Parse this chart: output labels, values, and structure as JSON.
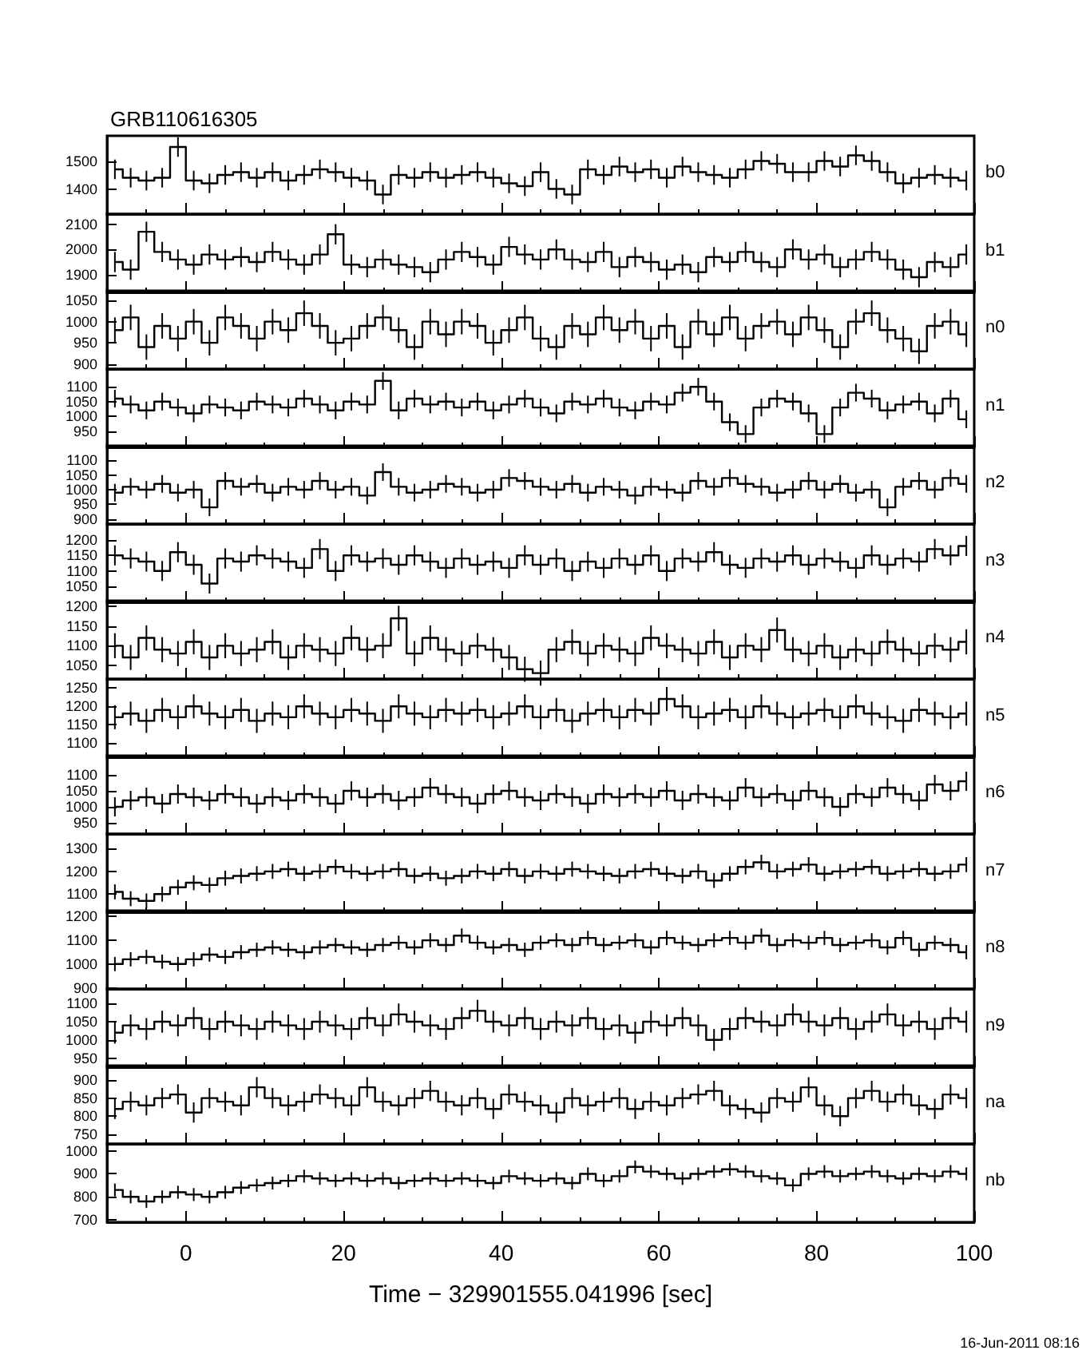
{
  "chart_data": [
    {
      "type": "step",
      "title": "GRB110616305",
      "annotations": [
        "b0"
      ],
      "x": [
        -9,
        -7,
        -5,
        -3,
        -1,
        1,
        3,
        5,
        7,
        9,
        11,
        13,
        15,
        17,
        19,
        21,
        23,
        25,
        27,
        29,
        31,
        33,
        35,
        37,
        39,
        41,
        43,
        45,
        47,
        49,
        51,
        53,
        55,
        57,
        59,
        61,
        63,
        65,
        67,
        69,
        71,
        73,
        75,
        77,
        79,
        81,
        83,
        85,
        87,
        89,
        91,
        93,
        95,
        97,
        99
      ],
      "xlim": [
        -10,
        100
      ],
      "xticks": [
        0,
        20,
        40,
        60,
        80,
        100
      ],
      "ylim": [
        1310,
        1590
      ],
      "yticks": [
        1400,
        1500
      ],
      "tick_labels": "y",
      "grid": false,
      "marker": "none",
      "line_style": "solid",
      "color": "#000000",
      "values": [
        1470,
        1440,
        1430,
        1440,
        1550,
        1430,
        1420,
        1450,
        1460,
        1440,
        1460,
        1430,
        1450,
        1470,
        1460,
        1440,
        1430,
        1380,
        1450,
        1440,
        1460,
        1440,
        1450,
        1460,
        1440,
        1420,
        1410,
        1460,
        1400,
        1380,
        1470,
        1450,
        1480,
        1460,
        1470,
        1440,
        1480,
        1460,
        1450,
        1440,
        1470,
        1500,
        1490,
        1460,
        1460,
        1500,
        1480,
        1520,
        1500,
        1460,
        1420,
        1440,
        1450,
        1440,
        1430
      ],
      "errors": [
        35,
        35,
        35,
        35,
        35,
        35,
        35,
        35,
        35,
        35,
        35,
        35,
        35,
        35,
        35,
        35,
        35,
        35,
        35,
        35,
        35,
        35,
        35,
        35,
        35,
        35,
        35,
        35,
        35,
        35,
        35,
        35,
        35,
        35,
        35,
        35,
        35,
        35,
        35,
        35,
        35,
        35,
        35,
        35,
        35,
        35,
        35,
        35,
        35,
        35,
        35,
        35,
        35,
        35,
        35
      ]
    },
    {
      "type": "step",
      "annotations": [
        "b1"
      ],
      "x": [
        -9,
        -7,
        -5,
        -3,
        -1,
        1,
        3,
        5,
        7,
        9,
        11,
        13,
        15,
        17,
        19,
        21,
        23,
        25,
        27,
        29,
        31,
        33,
        35,
        37,
        39,
        41,
        43,
        45,
        47,
        49,
        51,
        53,
        55,
        57,
        59,
        61,
        63,
        65,
        67,
        69,
        71,
        73,
        75,
        77,
        79,
        81,
        83,
        85,
        87,
        89,
        91,
        93,
        95,
        97,
        99
      ],
      "xlim": [
        -10,
        100
      ],
      "xticks": [
        0,
        20,
        40,
        60,
        80,
        100
      ],
      "ylim": [
        1830,
        2140
      ],
      "yticks": [
        1900,
        2000,
        2100
      ],
      "tick_labels": "y",
      "grid": false,
      "marker": "none",
      "line_style": "solid",
      "color": "#000000",
      "values": [
        1950,
        1920,
        2070,
        1990,
        1960,
        1940,
        1980,
        1960,
        1970,
        1950,
        1990,
        1960,
        1940,
        1980,
        2060,
        1940,
        1930,
        1960,
        1940,
        1930,
        1910,
        1960,
        1990,
        1970,
        1940,
        2010,
        1980,
        1960,
        2000,
        1960,
        1950,
        1990,
        1930,
        1970,
        1950,
        1920,
        1940,
        1910,
        1970,
        1950,
        1990,
        1950,
        1930,
        2000,
        1960,
        1980,
        1930,
        1960,
        1990,
        1960,
        1920,
        1890,
        1950,
        1930,
        1980
      ],
      "errors": [
        40,
        40,
        40,
        40,
        40,
        40,
        40,
        40,
        40,
        40,
        40,
        40,
        40,
        40,
        40,
        40,
        40,
        40,
        40,
        40,
        40,
        40,
        40,
        40,
        40,
        40,
        40,
        40,
        40,
        40,
        40,
        40,
        40,
        40,
        40,
        40,
        40,
        40,
        40,
        40,
        40,
        40,
        40,
        40,
        40,
        40,
        40,
        40,
        40,
        40,
        40,
        40,
        40,
        40,
        40
      ]
    },
    {
      "type": "step",
      "annotations": [
        "n0"
      ],
      "x": [
        -9,
        -7,
        -5,
        -3,
        -1,
        1,
        3,
        5,
        7,
        9,
        11,
        13,
        15,
        17,
        19,
        21,
        23,
        25,
        27,
        29,
        31,
        33,
        35,
        37,
        39,
        41,
        43,
        45,
        47,
        49,
        51,
        53,
        55,
        57,
        59,
        61,
        63,
        65,
        67,
        69,
        71,
        73,
        75,
        77,
        79,
        81,
        83,
        85,
        87,
        89,
        91,
        93,
        95,
        97,
        99
      ],
      "xlim": [
        -10,
        100
      ],
      "xticks": [
        0,
        20,
        40,
        60,
        80,
        100
      ],
      "ylim": [
        888,
        1073
      ],
      "yticks": [
        900,
        950,
        1000,
        1050
      ],
      "tick_labels": "y",
      "grid": false,
      "marker": "none",
      "line_style": "solid",
      "color": "#000000",
      "values": [
        980,
        1010,
        940,
        990,
        960,
        1000,
        950,
        1010,
        990,
        960,
        1000,
        980,
        1020,
        990,
        950,
        960,
        990,
        1010,
        980,
        940,
        1000,
        970,
        1000,
        990,
        950,
        980,
        1010,
        960,
        940,
        990,
        970,
        1010,
        980,
        1000,
        960,
        990,
        940,
        1000,
        970,
        1010,
        960,
        990,
        1000,
        970,
        1010,
        980,
        940,
        1000,
        1020,
        980,
        960,
        930,
        990,
        1000,
        970
      ],
      "errors": [
        30,
        30,
        30,
        30,
        30,
        30,
        30,
        30,
        30,
        30,
        30,
        30,
        30,
        30,
        30,
        30,
        30,
        30,
        30,
        30,
        30,
        30,
        30,
        30,
        30,
        30,
        30,
        30,
        30,
        30,
        30,
        30,
        30,
        30,
        30,
        30,
        30,
        30,
        30,
        30,
        30,
        30,
        30,
        30,
        30,
        30,
        30,
        30,
        30,
        30,
        30,
        30,
        30,
        30,
        30
      ]
    },
    {
      "type": "step",
      "annotations": [
        "n1"
      ],
      "x": [
        -9,
        -7,
        -5,
        -3,
        -1,
        1,
        3,
        5,
        7,
        9,
        11,
        13,
        15,
        17,
        19,
        21,
        23,
        25,
        27,
        29,
        31,
        33,
        35,
        37,
        39,
        41,
        43,
        45,
        47,
        49,
        51,
        53,
        55,
        57,
        59,
        61,
        63,
        65,
        67,
        69,
        71,
        73,
        75,
        77,
        79,
        81,
        83,
        85,
        87,
        89,
        91,
        93,
        95,
        97,
        99
      ],
      "xlim": [
        -10,
        100
      ],
      "xticks": [
        0,
        20,
        40,
        60,
        80,
        100
      ],
      "ylim": [
        895,
        1160
      ],
      "yticks": [
        950,
        1000,
        1050,
        1100
      ],
      "tick_labels": "y",
      "grid": false,
      "marker": "none",
      "line_style": "solid",
      "color": "#000000",
      "values": [
        1060,
        1040,
        1020,
        1050,
        1030,
        1010,
        1040,
        1030,
        1020,
        1050,
        1040,
        1030,
        1060,
        1040,
        1020,
        1050,
        1040,
        1120,
        1020,
        1060,
        1040,
        1050,
        1030,
        1050,
        1020,
        1040,
        1060,
        1030,
        1010,
        1050,
        1040,
        1060,
        1030,
        1020,
        1050,
        1040,
        1080,
        1100,
        1050,
        980,
        940,
        1030,
        1060,
        1050,
        1010,
        940,
        1030,
        1080,
        1060,
        1020,
        1040,
        1050,
        1010,
        1060,
        990
      ],
      "errors": [
        30,
        30,
        30,
        30,
        30,
        30,
        30,
        30,
        30,
        30,
        30,
        30,
        30,
        30,
        30,
        30,
        30,
        30,
        30,
        30,
        30,
        30,
        30,
        30,
        30,
        30,
        30,
        30,
        30,
        30,
        30,
        30,
        30,
        30,
        30,
        30,
        30,
        30,
        30,
        30,
        30,
        30,
        30,
        30,
        30,
        30,
        30,
        30,
        30,
        30,
        30,
        30,
        30,
        30,
        30
      ]
    },
    {
      "type": "step",
      "annotations": [
        "n2"
      ],
      "x": [
        -9,
        -7,
        -5,
        -3,
        -1,
        1,
        3,
        5,
        7,
        9,
        11,
        13,
        15,
        17,
        19,
        21,
        23,
        25,
        27,
        29,
        31,
        33,
        35,
        37,
        39,
        41,
        43,
        45,
        47,
        49,
        51,
        53,
        55,
        57,
        59,
        61,
        63,
        65,
        67,
        69,
        71,
        73,
        75,
        77,
        79,
        81,
        83,
        85,
        87,
        89,
        91,
        93,
        95,
        97,
        99
      ],
      "xlim": [
        -10,
        100
      ],
      "xticks": [
        0,
        20,
        40,
        60,
        80,
        100
      ],
      "ylim": [
        883,
        1150
      ],
      "yticks": [
        900,
        950,
        1000,
        1050,
        1100
      ],
      "tick_labels": "y",
      "grid": false,
      "marker": "none",
      "line_style": "solid",
      "color": "#000000",
      "values": [
        990,
        1010,
        1000,
        1020,
        990,
        1000,
        940,
        1030,
        1010,
        1020,
        990,
        1010,
        1000,
        1030,
        1000,
        1010,
        980,
        1060,
        1010,
        990,
        1000,
        1020,
        1010,
        990,
        1000,
        1040,
        1030,
        1010,
        1000,
        1020,
        990,
        1010,
        1000,
        980,
        1010,
        1000,
        990,
        1030,
        1010,
        1040,
        1020,
        1010,
        990,
        1000,
        1030,
        1000,
        1020,
        990,
        1000,
        940,
        1010,
        1030,
        1000,
        1040,
        1020
      ],
      "errors": [
        30,
        30,
        30,
        30,
        30,
        30,
        30,
        30,
        30,
        30,
        30,
        30,
        30,
        30,
        30,
        30,
        30,
        30,
        30,
        30,
        30,
        30,
        30,
        30,
        30,
        30,
        30,
        30,
        30,
        30,
        30,
        30,
        30,
        30,
        30,
        30,
        30,
        30,
        30,
        30,
        30,
        30,
        30,
        30,
        30,
        30,
        30,
        30,
        30,
        30,
        30,
        30,
        30,
        30,
        30
      ]
    },
    {
      "type": "step",
      "annotations": [
        "n3"
      ],
      "x": [
        -9,
        -7,
        -5,
        -3,
        -1,
        1,
        3,
        5,
        7,
        9,
        11,
        13,
        15,
        17,
        19,
        21,
        23,
        25,
        27,
        29,
        31,
        33,
        35,
        37,
        39,
        41,
        43,
        45,
        47,
        49,
        51,
        53,
        55,
        57,
        59,
        61,
        63,
        65,
        67,
        69,
        71,
        73,
        75,
        77,
        79,
        81,
        83,
        85,
        87,
        89,
        91,
        93,
        95,
        97,
        99
      ],
      "xlim": [
        -10,
        100
      ],
      "xticks": [
        0,
        20,
        40,
        60,
        80,
        100
      ],
      "ylim": [
        1000,
        1250
      ],
      "yticks": [
        1050,
        1100,
        1150,
        1200
      ],
      "tick_labels": "y",
      "grid": false,
      "marker": "none",
      "line_style": "solid",
      "color": "#000000",
      "values": [
        1150,
        1140,
        1130,
        1100,
        1160,
        1120,
        1060,
        1140,
        1130,
        1150,
        1140,
        1130,
        1110,
        1170,
        1100,
        1150,
        1130,
        1140,
        1120,
        1150,
        1130,
        1110,
        1140,
        1120,
        1130,
        1110,
        1150,
        1120,
        1140,
        1100,
        1130,
        1110,
        1140,
        1120,
        1150,
        1100,
        1140,
        1130,
        1160,
        1120,
        1110,
        1140,
        1130,
        1150,
        1120,
        1140,
        1130,
        1110,
        1150,
        1120,
        1140,
        1130,
        1170,
        1150,
        1180
      ],
      "errors": [
        32,
        32,
        32,
        32,
        32,
        32,
        32,
        32,
        32,
        32,
        32,
        32,
        32,
        32,
        32,
        32,
        32,
        32,
        32,
        32,
        32,
        32,
        32,
        32,
        32,
        32,
        32,
        32,
        32,
        32,
        32,
        32,
        32,
        32,
        32,
        32,
        32,
        32,
        32,
        32,
        32,
        32,
        32,
        32,
        32,
        32,
        32,
        32,
        32,
        32,
        32,
        32,
        32,
        32,
        32
      ]
    },
    {
      "type": "step",
      "annotations": [
        "n4"
      ],
      "x": [
        -9,
        -7,
        -5,
        -3,
        -1,
        1,
        3,
        5,
        7,
        9,
        11,
        13,
        15,
        17,
        19,
        21,
        23,
        25,
        27,
        29,
        31,
        33,
        35,
        37,
        39,
        41,
        43,
        45,
        47,
        49,
        51,
        53,
        55,
        57,
        59,
        61,
        63,
        65,
        67,
        69,
        71,
        73,
        75,
        77,
        79,
        81,
        83,
        85,
        87,
        89,
        91,
        93,
        95,
        97,
        99
      ],
      "xlim": [
        -10,
        100
      ],
      "xticks": [
        0,
        20,
        40,
        60,
        80,
        100
      ],
      "ylim": [
        1015,
        1215
      ],
      "yticks": [
        1050,
        1100,
        1150,
        1200
      ],
      "tick_labels": "y",
      "grid": false,
      "marker": "none",
      "line_style": "solid",
      "color": "#000000",
      "values": [
        1100,
        1070,
        1120,
        1090,
        1080,
        1110,
        1070,
        1100,
        1080,
        1090,
        1110,
        1070,
        1100,
        1090,
        1080,
        1120,
        1090,
        1100,
        1170,
        1080,
        1120,
        1090,
        1080,
        1100,
        1090,
        1070,
        1040,
        1030,
        1090,
        1110,
        1080,
        1100,
        1090,
        1080,
        1120,
        1100,
        1090,
        1080,
        1110,
        1070,
        1100,
        1090,
        1140,
        1090,
        1080,
        1100,
        1070,
        1090,
        1080,
        1110,
        1090,
        1080,
        1100,
        1090,
        1110
      ],
      "errors": [
        32,
        32,
        32,
        32,
        32,
        32,
        32,
        32,
        32,
        32,
        32,
        32,
        32,
        32,
        32,
        32,
        32,
        32,
        32,
        32,
        32,
        32,
        32,
        32,
        32,
        32,
        32,
        32,
        32,
        32,
        32,
        32,
        32,
        32,
        32,
        32,
        32,
        32,
        32,
        32,
        32,
        32,
        32,
        32,
        32,
        32,
        32,
        32,
        32,
        32,
        32,
        32,
        32,
        32,
        32
      ]
    },
    {
      "type": "step",
      "annotations": [
        "n5"
      ],
      "x": [
        -9,
        -7,
        -5,
        -3,
        -1,
        1,
        3,
        5,
        7,
        9,
        11,
        13,
        15,
        17,
        19,
        21,
        23,
        25,
        27,
        29,
        31,
        33,
        35,
        37,
        39,
        41,
        43,
        45,
        47,
        49,
        51,
        53,
        55,
        57,
        59,
        61,
        63,
        65,
        67,
        69,
        71,
        73,
        75,
        77,
        79,
        81,
        83,
        85,
        87,
        89,
        91,
        93,
        95,
        97,
        99
      ],
      "xlim": [
        -10,
        100
      ],
      "xticks": [
        0,
        20,
        40,
        60,
        80,
        100
      ],
      "ylim": [
        1060,
        1275
      ],
      "yticks": [
        1100,
        1150,
        1200,
        1250
      ],
      "tick_labels": "y",
      "grid": false,
      "marker": "none",
      "line_style": "solid",
      "color": "#000000",
      "values": [
        1170,
        1180,
        1160,
        1190,
        1170,
        1200,
        1180,
        1170,
        1190,
        1160,
        1180,
        1170,
        1200,
        1180,
        1170,
        1190,
        1180,
        1160,
        1200,
        1180,
        1170,
        1190,
        1180,
        1190,
        1170,
        1180,
        1200,
        1170,
        1190,
        1160,
        1180,
        1190,
        1170,
        1190,
        1180,
        1220,
        1200,
        1170,
        1180,
        1190,
        1170,
        1200,
        1180,
        1170,
        1180,
        1190,
        1170,
        1200,
        1180,
        1170,
        1160,
        1190,
        1180,
        1170,
        1180
      ],
      "errors": [
        33,
        33,
        33,
        33,
        33,
        33,
        33,
        33,
        33,
        33,
        33,
        33,
        33,
        33,
        33,
        33,
        33,
        33,
        33,
        33,
        33,
        33,
        33,
        33,
        33,
        33,
        33,
        33,
        33,
        33,
        33,
        33,
        33,
        33,
        33,
        33,
        33,
        33,
        33,
        33,
        33,
        33,
        33,
        33,
        33,
        33,
        33,
        33,
        33,
        33,
        33,
        33,
        33,
        33,
        33
      ]
    },
    {
      "type": "step",
      "annotations": [
        "n6"
      ],
      "x": [
        -9,
        -7,
        -5,
        -3,
        -1,
        1,
        3,
        5,
        7,
        9,
        11,
        13,
        15,
        17,
        19,
        21,
        23,
        25,
        27,
        29,
        31,
        33,
        35,
        37,
        39,
        41,
        43,
        45,
        47,
        49,
        51,
        53,
        55,
        57,
        59,
        61,
        63,
        65,
        67,
        69,
        71,
        73,
        75,
        77,
        79,
        81,
        83,
        85,
        87,
        89,
        91,
        93,
        95,
        97,
        99
      ],
      "xlim": [
        -10,
        100
      ],
      "xticks": [
        0,
        20,
        40,
        60,
        80,
        100
      ],
      "ylim": [
        915,
        1160
      ],
      "yticks": [
        950,
        1000,
        1050,
        1100
      ],
      "tick_labels": "y",
      "grid": false,
      "marker": "none",
      "line_style": "solid",
      "color": "#000000",
      "values": [
        1000,
        1020,
        1030,
        1010,
        1040,
        1030,
        1020,
        1040,
        1030,
        1010,
        1030,
        1020,
        1040,
        1030,
        1010,
        1050,
        1030,
        1040,
        1020,
        1030,
        1060,
        1040,
        1030,
        1010,
        1040,
        1050,
        1030,
        1020,
        1040,
        1030,
        1010,
        1040,
        1030,
        1040,
        1030,
        1050,
        1020,
        1040,
        1030,
        1020,
        1060,
        1030,
        1040,
        1020,
        1050,
        1030,
        1000,
        1040,
        1030,
        1060,
        1040,
        1020,
        1070,
        1050,
        1080
      ],
      "errors": [
        30,
        30,
        30,
        30,
        30,
        30,
        30,
        30,
        30,
        30,
        30,
        30,
        30,
        30,
        30,
        30,
        30,
        30,
        30,
        30,
        30,
        30,
        30,
        30,
        30,
        30,
        30,
        30,
        30,
        30,
        30,
        30,
        30,
        30,
        30,
        30,
        30,
        30,
        30,
        30,
        30,
        30,
        30,
        30,
        30,
        30,
        30,
        30,
        30,
        30,
        30,
        30,
        30,
        30,
        30
      ]
    },
    {
      "type": "step",
      "annotations": [
        "n7"
      ],
      "x": [
        -9,
        -7,
        -5,
        -3,
        -1,
        1,
        3,
        5,
        7,
        9,
        11,
        13,
        15,
        17,
        19,
        21,
        23,
        25,
        27,
        29,
        31,
        33,
        35,
        37,
        39,
        41,
        43,
        45,
        47,
        49,
        51,
        53,
        55,
        57,
        59,
        61,
        63,
        65,
        67,
        69,
        71,
        73,
        75,
        77,
        79,
        81,
        83,
        85,
        87,
        89,
        91,
        93,
        95,
        97,
        99
      ],
      "xlim": [
        -10,
        100
      ],
      "xticks": [
        0,
        20,
        40,
        60,
        80,
        100
      ],
      "ylim": [
        1020,
        1365
      ],
      "yticks": [
        1100,
        1200,
        1300
      ],
      "tick_labels": "y",
      "grid": false,
      "marker": "none",
      "line_style": "solid",
      "color": "#000000",
      "values": [
        1110,
        1080,
        1070,
        1100,
        1130,
        1150,
        1140,
        1170,
        1180,
        1190,
        1200,
        1210,
        1190,
        1200,
        1220,
        1200,
        1190,
        1200,
        1210,
        1180,
        1190,
        1170,
        1180,
        1200,
        1190,
        1210,
        1180,
        1200,
        1190,
        1210,
        1200,
        1190,
        1180,
        1200,
        1210,
        1190,
        1180,
        1200,
        1160,
        1190,
        1220,
        1240,
        1200,
        1210,
        1230,
        1190,
        1200,
        1210,
        1220,
        1190,
        1200,
        1210,
        1190,
        1200,
        1230
      ],
      "errors": [
        33,
        33,
        33,
        33,
        33,
        33,
        33,
        33,
        33,
        33,
        33,
        33,
        33,
        33,
        33,
        33,
        33,
        33,
        33,
        33,
        33,
        33,
        33,
        33,
        33,
        33,
        33,
        33,
        33,
        33,
        33,
        33,
        33,
        33,
        33,
        33,
        33,
        33,
        33,
        33,
        33,
        33,
        33,
        33,
        33,
        33,
        33,
        33,
        33,
        33,
        33,
        33,
        33,
        33,
        33
      ]
    },
    {
      "type": "step",
      "annotations": [
        "n8"
      ],
      "x": [
        -9,
        -7,
        -5,
        -3,
        -1,
        1,
        3,
        5,
        7,
        9,
        11,
        13,
        15,
        17,
        19,
        21,
        23,
        25,
        27,
        29,
        31,
        33,
        35,
        37,
        39,
        41,
        43,
        45,
        47,
        49,
        51,
        53,
        55,
        57,
        59,
        61,
        63,
        65,
        67,
        69,
        71,
        73,
        75,
        77,
        79,
        81,
        83,
        85,
        87,
        89,
        91,
        93,
        95,
        97,
        99
      ],
      "xlim": [
        -10,
        100
      ],
      "xticks": [
        0,
        20,
        40,
        60,
        80,
        100
      ],
      "ylim": [
        895,
        1225
      ],
      "yticks": [
        900,
        1000,
        1100,
        1200
      ],
      "tick_labels": "y",
      "grid": false,
      "marker": "none",
      "line_style": "solid",
      "color": "#000000",
      "values": [
        1000,
        1020,
        1030,
        1010,
        1000,
        1020,
        1040,
        1030,
        1050,
        1060,
        1070,
        1060,
        1050,
        1070,
        1080,
        1070,
        1060,
        1080,
        1090,
        1070,
        1100,
        1080,
        1120,
        1090,
        1070,
        1080,
        1060,
        1090,
        1100,
        1080,
        1110,
        1080,
        1090,
        1100,
        1070,
        1110,
        1090,
        1080,
        1100,
        1110,
        1090,
        1120,
        1080,
        1100,
        1090,
        1110,
        1080,
        1090,
        1100,
        1070,
        1110,
        1060,
        1090,
        1080,
        1050
      ],
      "errors": [
        30,
        30,
        30,
        30,
        30,
        30,
        30,
        30,
        30,
        30,
        30,
        30,
        30,
        30,
        30,
        30,
        30,
        30,
        30,
        30,
        30,
        30,
        30,
        30,
        30,
        30,
        30,
        30,
        30,
        30,
        30,
        30,
        30,
        30,
        30,
        30,
        30,
        30,
        30,
        30,
        30,
        30,
        30,
        30,
        30,
        30,
        30,
        30,
        30,
        30,
        30,
        30,
        30,
        30,
        30
      ]
    },
    {
      "type": "step",
      "annotations": [
        "n9"
      ],
      "x": [
        -9,
        -7,
        -5,
        -3,
        -1,
        1,
        3,
        5,
        7,
        9,
        11,
        13,
        15,
        17,
        19,
        21,
        23,
        25,
        27,
        29,
        31,
        33,
        35,
        37,
        39,
        41,
        43,
        45,
        47,
        49,
        51,
        53,
        55,
        57,
        59,
        61,
        63,
        65,
        67,
        69,
        71,
        73,
        75,
        77,
        79,
        81,
        83,
        85,
        87,
        89,
        91,
        93,
        95,
        97,
        99
      ],
      "xlim": [
        -10,
        100
      ],
      "xticks": [
        0,
        20,
        40,
        60,
        80,
        100
      ],
      "ylim": [
        925,
        1140
      ],
      "yticks": [
        950,
        1000,
        1050,
        1100
      ],
      "tick_labels": "y",
      "grid": false,
      "marker": "none",
      "line_style": "solid",
      "color": "#000000",
      "values": [
        1020,
        1040,
        1030,
        1050,
        1040,
        1060,
        1030,
        1050,
        1040,
        1030,
        1050,
        1040,
        1030,
        1050,
        1040,
        1030,
        1060,
        1040,
        1070,
        1050,
        1040,
        1030,
        1060,
        1080,
        1050,
        1040,
        1060,
        1030,
        1050,
        1040,
        1060,
        1030,
        1040,
        1020,
        1050,
        1040,
        1060,
        1040,
        1000,
        1030,
        1060,
        1050,
        1040,
        1070,
        1050,
        1040,
        1060,
        1030,
        1050,
        1070,
        1040,
        1050,
        1030,
        1060,
        1050
      ],
      "errors": [
        30,
        30,
        30,
        30,
        30,
        30,
        30,
        30,
        30,
        30,
        30,
        30,
        30,
        30,
        30,
        30,
        30,
        30,
        30,
        30,
        30,
        30,
        30,
        30,
        30,
        30,
        30,
        30,
        30,
        30,
        30,
        30,
        30,
        30,
        30,
        30,
        30,
        30,
        30,
        30,
        30,
        30,
        30,
        30,
        30,
        30,
        30,
        30,
        30,
        30,
        30,
        30,
        30,
        30,
        30
      ]
    },
    {
      "type": "step",
      "annotations": [
        "na"
      ],
      "x": [
        -9,
        -7,
        -5,
        -3,
        -1,
        1,
        3,
        5,
        7,
        9,
        11,
        13,
        15,
        17,
        19,
        21,
        23,
        25,
        27,
        29,
        31,
        33,
        35,
        37,
        39,
        41,
        43,
        45,
        47,
        49,
        51,
        53,
        55,
        57,
        59,
        61,
        63,
        65,
        67,
        69,
        71,
        73,
        75,
        77,
        79,
        81,
        83,
        85,
        87,
        89,
        91,
        93,
        95,
        97,
        99
      ],
      "xlim": [
        -10,
        100
      ],
      "xticks": [
        0,
        20,
        40,
        60,
        80,
        100
      ],
      "ylim": [
        723,
        940
      ],
      "yticks": [
        750,
        800,
        850,
        900
      ],
      "tick_labels": "y",
      "grid": false,
      "marker": "none",
      "line_style": "solid",
      "color": "#000000",
      "values": [
        820,
        840,
        830,
        850,
        860,
        810,
        850,
        840,
        830,
        880,
        850,
        830,
        840,
        860,
        850,
        830,
        880,
        840,
        830,
        850,
        870,
        840,
        830,
        850,
        820,
        860,
        840,
        830,
        810,
        850,
        830,
        840,
        850,
        820,
        840,
        830,
        850,
        860,
        870,
        830,
        820,
        810,
        850,
        840,
        880,
        830,
        800,
        850,
        870,
        840,
        860,
        830,
        820,
        860,
        850
      ],
      "errors": [
        28,
        28,
        28,
        28,
        28,
        28,
        28,
        28,
        28,
        28,
        28,
        28,
        28,
        28,
        28,
        28,
        28,
        28,
        28,
        28,
        28,
        28,
        28,
        28,
        28,
        28,
        28,
        28,
        28,
        28,
        28,
        28,
        28,
        28,
        28,
        28,
        28,
        28,
        28,
        28,
        28,
        28,
        28,
        28,
        28,
        28,
        28,
        28,
        28,
        28,
        28,
        28,
        28,
        28,
        28
      ]
    },
    {
      "type": "step",
      "annotations": [
        "nb",
        "16-Jun-2011 08:16"
      ],
      "xlabel": "Time − 329901555.041996 [sec]",
      "x": [
        -9,
        -7,
        -5,
        -3,
        -1,
        1,
        3,
        5,
        7,
        9,
        11,
        13,
        15,
        17,
        19,
        21,
        23,
        25,
        27,
        29,
        31,
        33,
        35,
        37,
        39,
        41,
        43,
        45,
        47,
        49,
        51,
        53,
        55,
        57,
        59,
        61,
        63,
        65,
        67,
        69,
        71,
        73,
        75,
        77,
        79,
        81,
        83,
        85,
        87,
        89,
        91,
        93,
        95,
        97,
        99
      ],
      "xlim": [
        -10,
        100
      ],
      "xticks": [
        0,
        20,
        40,
        60,
        80,
        100
      ],
      "ylim": [
        690,
        1030
      ],
      "yticks": [
        700,
        800,
        900,
        1000
      ],
      "grid": false,
      "marker": "none",
      "line_style": "solid",
      "color": "#000000",
      "values": [
        830,
        800,
        780,
        800,
        820,
        810,
        800,
        820,
        840,
        850,
        860,
        870,
        890,
        880,
        870,
        880,
        870,
        880,
        860,
        870,
        880,
        870,
        880,
        870,
        860,
        890,
        880,
        870,
        880,
        860,
        900,
        870,
        890,
        930,
        910,
        900,
        880,
        900,
        910,
        920,
        910,
        890,
        880,
        850,
        900,
        910,
        890,
        900,
        910,
        890,
        880,
        900,
        890,
        910,
        900
      ],
      "errors": [
        28,
        28,
        28,
        28,
        28,
        28,
        28,
        28,
        28,
        28,
        28,
        28,
        28,
        28,
        28,
        28,
        28,
        28,
        28,
        28,
        28,
        28,
        28,
        28,
        28,
        28,
        28,
        28,
        28,
        28,
        28,
        28,
        28,
        28,
        28,
        28,
        28,
        28,
        28,
        28,
        28,
        28,
        28,
        28,
        28,
        28,
        28,
        28,
        28,
        28,
        28,
        28,
        28,
        28,
        28
      ]
    }
  ]
}
